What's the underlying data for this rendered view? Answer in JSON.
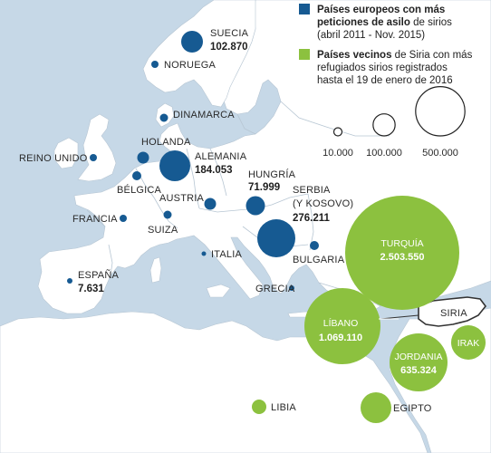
{
  "colors": {
    "sea": "#c6d8e7",
    "land": "#ffffff",
    "border": "#b7c6d3",
    "europe_marker": "#165a92",
    "neighbor_marker": "#8cc13f",
    "syria_outline": "#333333"
  },
  "legend": {
    "europe_title": "Países europeos con más",
    "europe_title_2": "peticiones de asilo",
    "europe_suffix": " de sirios",
    "europe_period": "(abril 2011 - Nov. 2015)",
    "neighbor_title": "Países vecinos",
    "neighbor_suffix": " de Siria con más",
    "neighbor_line2": "refugiados sirios registrados",
    "neighbor_line3": "hasta el 19 de enero de 2016"
  },
  "scale": {
    "values": [
      10000,
      100000,
      500000
    ],
    "labels": [
      "10.000",
      "100.000",
      "500.000"
    ]
  },
  "countries": {
    "suecia": {
      "name": "SUECIA",
      "value_text": "102.870",
      "value": 102870,
      "group": "europe"
    },
    "noruega": {
      "name": "NORUEGA",
      "group": "europe"
    },
    "dinamarca": {
      "name": "DINAMARCA",
      "group": "europe"
    },
    "holanda": {
      "name": "HOLANDA",
      "group": "europe"
    },
    "alemania": {
      "name": "ALEMANIA",
      "value_text": "184.053",
      "value": 184053,
      "group": "europe"
    },
    "reino_unido": {
      "name": "REINO UNIDO",
      "group": "europe"
    },
    "belgica": {
      "name": "BÉLGICA",
      "group": "europe"
    },
    "hungria": {
      "name": "HUNGRÍA",
      "value_text": "71.999",
      "value": 71999,
      "group": "europe"
    },
    "serbia": {
      "name": "SERBIA",
      "name_2": "(Y KOSOVO)",
      "value_text": "276.211",
      "value": 276211,
      "group": "europe"
    },
    "austria": {
      "name": "AUSTRIA",
      "group": "europe"
    },
    "francia": {
      "name": "FRANCIA",
      "group": "europe"
    },
    "suiza": {
      "name": "SUIZA",
      "group": "europe"
    },
    "italia": {
      "name": "ITALIA",
      "group": "europe"
    },
    "bulgaria": {
      "name": "BULGARIA",
      "group": "europe"
    },
    "espana": {
      "name": "ESPAÑA",
      "value_text": "7.631",
      "value": 7631,
      "group": "europe"
    },
    "grecia": {
      "name": "GRECIA",
      "group": "europe"
    },
    "turquia": {
      "name": "TURQUÍA",
      "value_text": "2.503.550",
      "value": 2503550,
      "group": "neighbor"
    },
    "libano": {
      "name": "LÍBANO",
      "value_text": "1.069.110",
      "value": 1069110,
      "group": "neighbor"
    },
    "jordania": {
      "name": "JORDANIA",
      "value_text": "635.324",
      "value": 635324,
      "group": "neighbor"
    },
    "irak": {
      "name": "IRAK",
      "group": "neighbor"
    },
    "libia": {
      "name": "LIBIA",
      "group": "neighbor"
    },
    "egipto": {
      "name": "EGIPTO",
      "group": "neighbor"
    },
    "siria": {
      "name": "SIRIA"
    }
  }
}
